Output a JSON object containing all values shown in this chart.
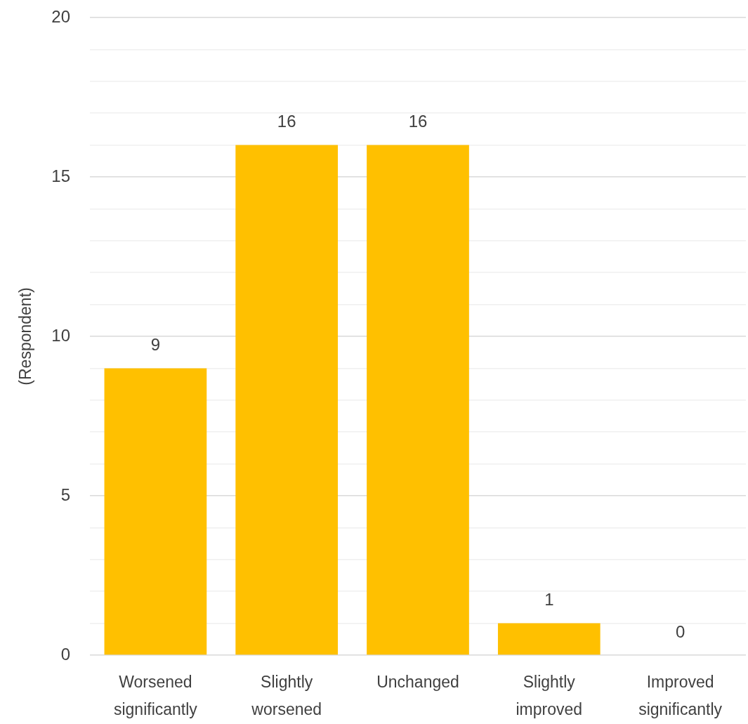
{
  "chart_data": {
    "type": "bar",
    "ylabel": "(Respondent)",
    "categories": [
      "Worsened significantly",
      "Slightly worsened",
      "Unchanged",
      "Slightly improved",
      "Improved significantly"
    ],
    "values": [
      9,
      16,
      16,
      1,
      0
    ],
    "color": "#ffc000",
    "ylim": [
      0,
      20
    ],
    "yticks": [
      0,
      {
        "value": 1,
        "label": null
      },
      {
        "value": 2,
        "label": null
      },
      {
        "value": 3,
        "label": null
      },
      {
        "value": 4,
        "label": null
      },
      5,
      {
        "value": 6,
        "label": null
      },
      {
        "value": 7,
        "label": null
      },
      {
        "value": 8,
        "label": null
      },
      {
        "value": 9,
        "label": null
      },
      10,
      {
        "value": 11,
        "label": null
      },
      {
        "value": 12,
        "label": null
      },
      {
        "value": 13,
        "label": null
      },
      {
        "value": 14,
        "label": null
      },
      15,
      {
        "value": 16,
        "label": null
      },
      {
        "value": 17,
        "label": null
      },
      {
        "value": 18,
        "label": null
      },
      {
        "value": 19,
        "label": null
      },
      20
    ],
    "grid": "y",
    "data_labels": true
  }
}
